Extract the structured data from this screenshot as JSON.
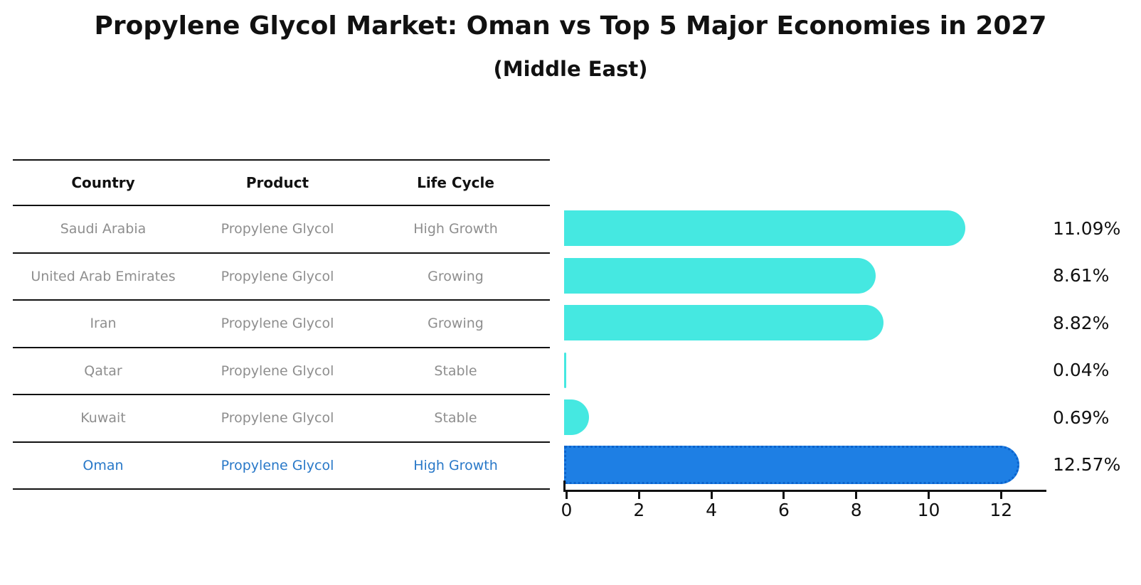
{
  "title": "Propylene Glycol Market: Oman vs Top 5 Major Economies in 2027",
  "subtitle": "(Middle East)",
  "table": {
    "headers": {
      "country": "Country",
      "product": "Product",
      "life_cycle": "Life Cycle"
    },
    "rows": [
      {
        "country": "Saudi Arabia",
        "product": "Propylene Glycol",
        "life_cycle": "High Growth",
        "highlight": false
      },
      {
        "country": "United Arab Emirates",
        "product": "Propylene Glycol",
        "life_cycle": "Growing",
        "highlight": false
      },
      {
        "country": "Iran",
        "product": "Propylene Glycol",
        "life_cycle": "Growing",
        "highlight": false
      },
      {
        "country": "Qatar",
        "product": "Propylene Glycol",
        "life_cycle": "Stable",
        "highlight": false
      },
      {
        "country": "Kuwait",
        "product": "Propylene Glycol",
        "life_cycle": "Stable",
        "highlight": false
      },
      {
        "country": "Oman",
        "product": "Propylene Glycol",
        "life_cycle": "High Growth",
        "highlight": true
      }
    ]
  },
  "chart_data": {
    "type": "bar",
    "orientation": "horizontal",
    "title": "Propylene Glycol Market: Oman vs Top 5 Major Economies in 2027",
    "subtitle": "(Middle East)",
    "categories": [
      "Saudi Arabia",
      "United Arab Emirates",
      "Iran",
      "Qatar",
      "Kuwait",
      "Oman"
    ],
    "values": [
      11.09,
      8.61,
      8.82,
      0.04,
      0.69,
      12.57
    ],
    "value_labels": [
      "11.09%",
      "8.61%",
      "8.82%",
      "0.04%",
      "0.69%",
      "12.57%"
    ],
    "highlight_index": 5,
    "xlabel": "",
    "ylabel": "",
    "xticks": [
      0,
      2,
      4,
      6,
      8,
      10,
      12
    ],
    "xlim": [
      0,
      13.3
    ],
    "grid": false,
    "legend": null,
    "bar_color": "#45E8E1",
    "highlight_bar_color": "#1E7FE4"
  },
  "colors": {
    "bar_cyan": "#45E8E1",
    "bar_blue": "#1E7FE4",
    "bar_blue_border": "#0B63CC",
    "highlight_text": "#2878C8",
    "muted_text": "#8E8E8E",
    "line": "#111111",
    "background": "#FFFFFF"
  }
}
